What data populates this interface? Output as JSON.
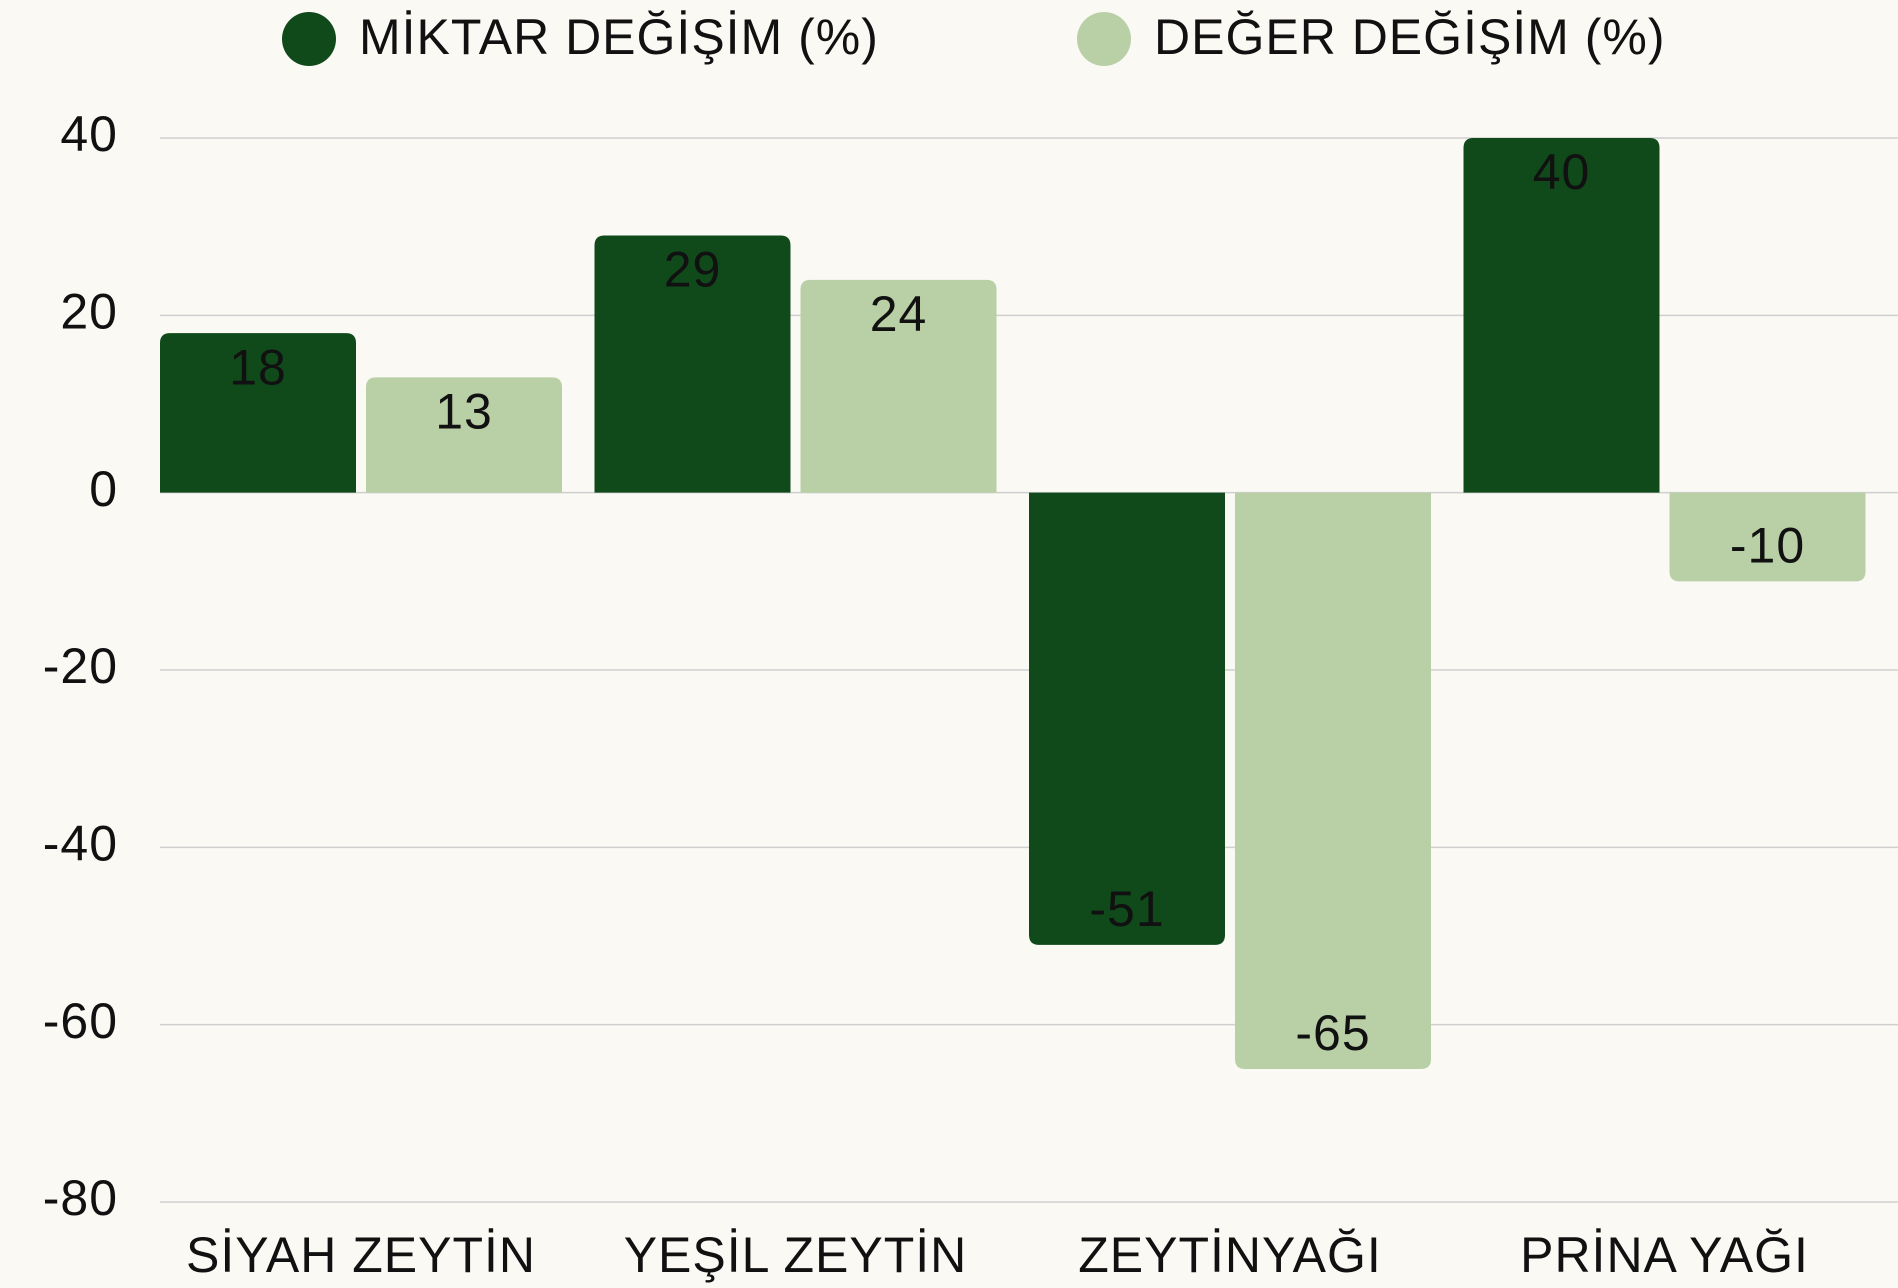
{
  "chart_data": {
    "type": "bar",
    "categories": [
      "SİYAH ZEYTİN",
      "YEŞİL ZEYTİN",
      "ZEYTİNYAĞI",
      "PRİNA YAĞI"
    ],
    "series": [
      {
        "name": "MİKTAR DEĞİŞİM (%)",
        "color": "#10491a",
        "label_color": "#ffffff",
        "values": [
          18,
          29,
          -51,
          40
        ]
      },
      {
        "name": "DEĞER DEĞİŞİM (%)",
        "color": "#b9cfa6",
        "label_color": "#111111",
        "values": [
          13,
          24,
          -65,
          -10
        ]
      }
    ],
    "ylim": [
      -80,
      40
    ],
    "yticks": [
      -80,
      -60,
      -40,
      -20,
      0,
      20,
      40
    ],
    "grid": true,
    "legend": "top"
  }
}
